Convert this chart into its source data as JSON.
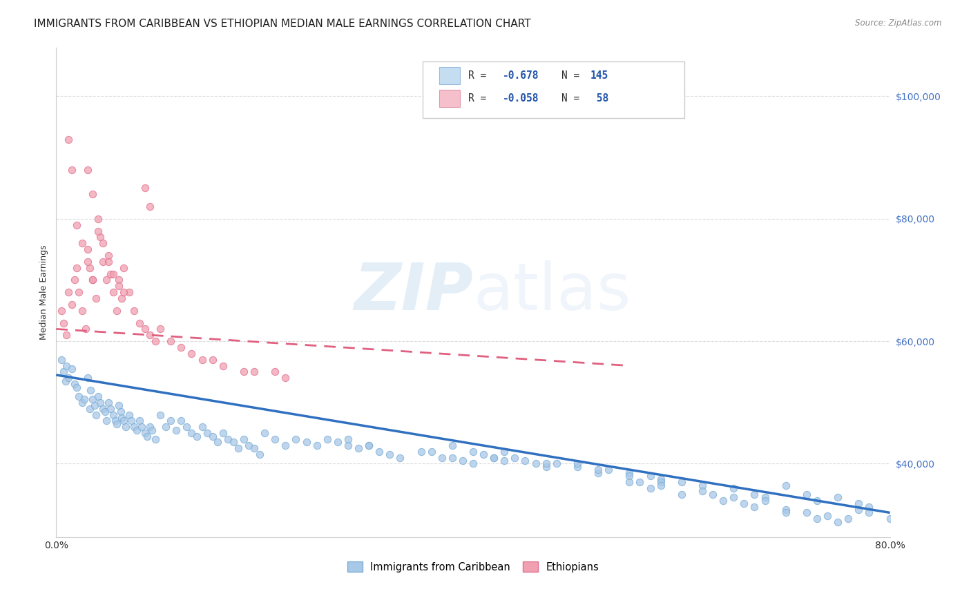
{
  "title": "IMMIGRANTS FROM CARIBBEAN VS ETHIOPIAN MEDIAN MALE EARNINGS CORRELATION CHART",
  "source": "Source: ZipAtlas.com",
  "ylabel": "Median Male Earnings",
  "ytick_labels": [
    "$40,000",
    "$60,000",
    "$80,000",
    "$100,000"
  ],
  "ytick_values": [
    40000,
    60000,
    80000,
    100000
  ],
  "bottom_legend": [
    "Immigrants from Caribbean",
    "Ethiopians"
  ],
  "watermark_zip": "ZIP",
  "watermark_atlas": "atlas",
  "background_color": "#ffffff",
  "grid_color": "#dddddd",
  "scatter_caribbean_color": "#a8c8e8",
  "scatter_ethiopian_color": "#f0a0b0",
  "scatter_caribbean_edge": "#7aadd4",
  "scatter_ethiopian_edge": "#e07090",
  "line_caribbean_color": "#3070c0",
  "line_ethiopian_color": "#e06080",
  "legend_caribbean_face": "#c5ddf0",
  "legend_ethiopian_face": "#f5c0cc",
  "xlim": [
    0.0,
    0.8
  ],
  "ylim": [
    28000,
    108000
  ],
  "caribbean_x": [
    0.005,
    0.007,
    0.009,
    0.01,
    0.012,
    0.015,
    0.018,
    0.02,
    0.022,
    0.025,
    0.027,
    0.03,
    0.032,
    0.033,
    0.035,
    0.037,
    0.038,
    0.04,
    0.042,
    0.045,
    0.047,
    0.048,
    0.05,
    0.052,
    0.055,
    0.057,
    0.058,
    0.06,
    0.062,
    0.063,
    0.065,
    0.067,
    0.07,
    0.072,
    0.075,
    0.077,
    0.08,
    0.082,
    0.085,
    0.087,
    0.09,
    0.092,
    0.095,
    0.1,
    0.105,
    0.11,
    0.115,
    0.12,
    0.125,
    0.13,
    0.135,
    0.14,
    0.145,
    0.15,
    0.155,
    0.16,
    0.165,
    0.17,
    0.175,
    0.18,
    0.185,
    0.19,
    0.195,
    0.2,
    0.21,
    0.22,
    0.23,
    0.24,
    0.25,
    0.26,
    0.27,
    0.28,
    0.29,
    0.3,
    0.31,
    0.32,
    0.33,
    0.35,
    0.37,
    0.38,
    0.4,
    0.42,
    0.43,
    0.44,
    0.45,
    0.46,
    0.47,
    0.48,
    0.5,
    0.52,
    0.53,
    0.55,
    0.57,
    0.58,
    0.6,
    0.62,
    0.63,
    0.65,
    0.67,
    0.68,
    0.7,
    0.72,
    0.73,
    0.75,
    0.77,
    0.78,
    0.28,
    0.3,
    0.58,
    0.36,
    0.38,
    0.39,
    0.41,
    0.42,
    0.4,
    0.43,
    0.47,
    0.5,
    0.52,
    0.55,
    0.56,
    0.58,
    0.62,
    0.65,
    0.66,
    0.68,
    0.7,
    0.72,
    0.74,
    0.76,
    0.78,
    0.8,
    0.55,
    0.57,
    0.6,
    0.64,
    0.67,
    0.7,
    0.73,
    0.75,
    0.77
  ],
  "caribbean_y": [
    57000,
    55000,
    53500,
    56000,
    54000,
    55500,
    53000,
    52500,
    51000,
    50000,
    50500,
    54000,
    49000,
    52000,
    50500,
    49500,
    48000,
    51000,
    50000,
    49000,
    48500,
    47000,
    50000,
    49000,
    48000,
    47000,
    46500,
    49500,
    48500,
    47500,
    47000,
    46000,
    48000,
    47000,
    46000,
    45500,
    47000,
    46000,
    45000,
    44500,
    46000,
    45500,
    44000,
    48000,
    46000,
    47000,
    45500,
    47000,
    46000,
    45000,
    44500,
    46000,
    45000,
    44500,
    43500,
    45000,
    44000,
    43500,
    42500,
    44000,
    43000,
    42500,
    41500,
    45000,
    44000,
    43000,
    44000,
    43500,
    43000,
    44000,
    43500,
    43000,
    42500,
    43000,
    42000,
    41500,
    41000,
    42000,
    41000,
    43000,
    42000,
    41000,
    40500,
    41000,
    40500,
    40000,
    39500,
    40000,
    39500,
    38500,
    39000,
    38500,
    38000,
    37500,
    37000,
    36500,
    35000,
    36000,
    35000,
    34500,
    36500,
    35000,
    34000,
    34500,
    33500,
    33000,
    44000,
    43000,
    37000,
    42000,
    41000,
    40500,
    41500,
    41000,
    40000,
    42000,
    40000,
    40000,
    39000,
    38000,
    37000,
    36500,
    35500,
    34500,
    33500,
    34000,
    32500,
    32000,
    31500,
    31000,
    32000,
    31000,
    37000,
    36000,
    35000,
    34000,
    33000,
    32000,
    31000,
    30500,
    32500
  ],
  "ethiopian_x": [
    0.005,
    0.007,
    0.01,
    0.012,
    0.015,
    0.018,
    0.02,
    0.022,
    0.025,
    0.028,
    0.03,
    0.032,
    0.035,
    0.038,
    0.04,
    0.042,
    0.045,
    0.048,
    0.05,
    0.052,
    0.055,
    0.058,
    0.06,
    0.063,
    0.065,
    0.07,
    0.075,
    0.08,
    0.085,
    0.09,
    0.095,
    0.1,
    0.11,
    0.12,
    0.13,
    0.14,
    0.15,
    0.16,
    0.18,
    0.19,
    0.21,
    0.22,
    0.085,
    0.09,
    0.03,
    0.035,
    0.04,
    0.045,
    0.05,
    0.055,
    0.06,
    0.065,
    0.012,
    0.015,
    0.02,
    0.025,
    0.03,
    0.035
  ],
  "ethiopian_y": [
    65000,
    63000,
    61000,
    68000,
    66000,
    70000,
    72000,
    68000,
    65000,
    62000,
    75000,
    72000,
    70000,
    67000,
    80000,
    77000,
    73000,
    70000,
    74000,
    71000,
    68000,
    65000,
    70000,
    67000,
    72000,
    68000,
    65000,
    63000,
    62000,
    61000,
    60000,
    62000,
    60000,
    59000,
    58000,
    57000,
    57000,
    56000,
    55000,
    55000,
    55000,
    54000,
    85000,
    82000,
    88000,
    84000,
    78000,
    76000,
    73000,
    71000,
    69000,
    68000,
    93000,
    88000,
    79000,
    76000,
    73000,
    70000
  ],
  "caribbean_line_x": [
    0.0,
    0.8
  ],
  "caribbean_line_y": [
    54500,
    32000
  ],
  "ethiopian_line_x": [
    0.0,
    0.55
  ],
  "ethiopian_line_y": [
    62000,
    56000
  ],
  "title_fontsize": 11,
  "axis_label_fontsize": 9,
  "tick_fontsize": 10,
  "ytick_color": "#4472c4",
  "source_color": "#888888"
}
